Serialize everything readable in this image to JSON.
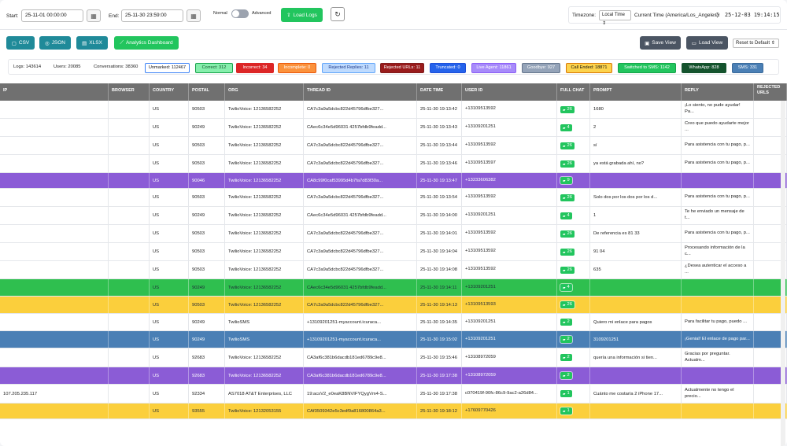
{
  "toolbar": {
    "start_label": "Start:",
    "start_value": "25-11-01 00:00:00",
    "end_label": "End:",
    "end_value": "25-11-30 23:59:00",
    "mode_normal": "Normal",
    "mode_advanced": "Advanced",
    "load_logs": "Load Logs",
    "timezone_label": "Timezone:",
    "timezone_value": "Local Time",
    "current_time_label": "Current Time (America/Los_Angeles):",
    "current_time_value": "25-12-03 19:14:15"
  },
  "actions": {
    "csv": "CSV",
    "json": "JSON",
    "xlsx": "XLSX",
    "analytics": "Analytics Dashboard",
    "save_view": "Save View",
    "load_view": "Load View",
    "reset_view": "Reset to Default"
  },
  "stats": {
    "logs": "Logs: 143614",
    "users": "Users: 20085",
    "conversations": "Conversations: 38360"
  },
  "chips": [
    {
      "label": "Unmarked: 112467",
      "bg": "#ffffff",
      "border": "#3b82f6",
      "color": "#111111"
    },
    {
      "label": "Correct: 312",
      "bg": "#86efac",
      "border": "#16a34a",
      "color": "#14532d"
    },
    {
      "label": "Incorrect: 34",
      "bg": "#dc2626",
      "border": "#dc2626",
      "color": "#ffffff"
    },
    {
      "label": "Incomplete: 0",
      "bg": "#fb923c",
      "border": "#ea580c",
      "color": "#ffffff"
    },
    {
      "label": "Rejected Replies: 11",
      "bg": "#bfdbfe",
      "border": "#60a5fa",
      "color": "#1e3a8a"
    },
    {
      "label": "Rejected URLs: 11",
      "bg": "#991b1b",
      "border": "#7f1d1d",
      "color": "#ffffff"
    },
    {
      "label": "Truncated: 0",
      "bg": "#2563eb",
      "border": "#1d4ed8",
      "color": "#ffffff"
    },
    {
      "label": "Live Agent: 11861",
      "bg": "#a78bfa",
      "border": "#8b5cf6",
      "color": "#ffffff"
    },
    {
      "label": "Goodbye: 927",
      "bg": "#94a3b8",
      "border": "#64748b",
      "color": "#ffffff"
    },
    {
      "label": "Call Ended: 18871",
      "bg": "#fcd34d",
      "border": "#d97706",
      "color": "#111111"
    },
    {
      "label": "Switched to SMS: 1142",
      "bg": "#22c55e",
      "border": "#16a34a",
      "color": "#ffffff"
    },
    {
      "label": "WhatsApp: 828",
      "bg": "#14532d",
      "border": "#14532d",
      "color": "#ffffff"
    },
    {
      "label": "SMS: 331",
      "bg": "#4a7fb5",
      "border": "#3b6a9a",
      "color": "#ffffff"
    }
  ],
  "columns": [
    "IP",
    "BROWSER",
    "COUNTRY",
    "POSTAL",
    "ORG",
    "THREAD ID",
    "DATE TIME",
    "USER ID",
    "FULL CHAT",
    "PROMPT",
    "REPLY",
    "REJECTED URLS"
  ],
  "row_colors": {
    "white": "#ffffff",
    "purple": "#8b5cd6",
    "green": "#2fbf4f",
    "yellow": "#fbcf3c",
    "blue": "#4a7fb5"
  },
  "rows": [
    {
      "style": "white",
      "ip": "",
      "country": "US",
      "postal": "90503",
      "org": "TwilioVoice: 12136582252",
      "thread": "CA7c3a9a5dcbc822d45796dfbe327...",
      "datetime": "25-11-30 19:13:42",
      "user": "+13109513592",
      "chat": "26",
      "prompt": "1680",
      "reply": "¡Lo siento, no pude ayudar! Pa..."
    },
    {
      "style": "white",
      "ip": "",
      "country": "US",
      "postal": "90249",
      "org": "TwilioVoice: 12136582252",
      "thread": "CAec6c34e5d96031 4257bfdb9feadd...",
      "datetime": "25-11-30 19:13:43",
      "user": "+13109201251",
      "chat": "4",
      "prompt": "2",
      "reply": "Creo que puedo ayudarte mejor ..."
    },
    {
      "style": "white",
      "ip": "",
      "country": "US",
      "postal": "90503",
      "org": "TwilioVoice: 12136582252",
      "thread": "CA7c3a9a5dcbc822d45796dfbe327...",
      "datetime": "25-11-30 19:13:44",
      "user": "+13109513592",
      "chat": "26",
      "prompt": "sí",
      "reply": "Para asistencia con tu pago, p..."
    },
    {
      "style": "white",
      "ip": "",
      "country": "US",
      "postal": "90503",
      "org": "TwilioVoice: 12136582252",
      "thread": "CA7c3a9a5dcbc822d45796dfbe327...",
      "datetime": "25-11-30 19:13:46",
      "user": "+13109513597",
      "chat": "26",
      "prompt": "ya está grabada ahí, no?",
      "reply": "Para asistencia con tu pago, p..."
    },
    {
      "style": "purple",
      "ip": "",
      "country": "US",
      "postal": "90046",
      "org": "TwilioVoice: 12136582252",
      "thread": "CA8c99f0caf53995d4b7fa7d83f30a...",
      "datetime": "25-11-30 19:13:47",
      "user": "+13233606382",
      "chat": "9",
      "prompt": "",
      "reply": ""
    },
    {
      "style": "white",
      "ip": "",
      "country": "US",
      "postal": "90503",
      "org": "TwilioVoice: 12136582252",
      "thread": "CA7c3a9a5dcbc822d45796dfbe327...",
      "datetime": "25-11-30 19:13:54",
      "user": "+13109513592",
      "chat": "26",
      "prompt": "Solo dos por los dos por los d...",
      "reply": "Para asistencia con tu pago, p..."
    },
    {
      "style": "white",
      "ip": "",
      "country": "US",
      "postal": "90249",
      "org": "TwilioVoice: 12136582252",
      "thread": "CAec6c34e5d96031 4257bfdb9feadd...",
      "datetime": "25-11-30 19:14:00",
      "user": "+13109201251",
      "chat": "4",
      "prompt": "1",
      "reply": "Te he enviado un mensaje de t..."
    },
    {
      "style": "white",
      "ip": "",
      "country": "US",
      "postal": "90503",
      "org": "TwilioVoice: 12136582252",
      "thread": "CA7c3a9a5dcbc822d45796dfbe327...",
      "datetime": "25-11-30 19:14:01",
      "user": "+13109513592",
      "chat": "26",
      "prompt": "De referencia es 81 33",
      "reply": "Para asistencia con tu pago, p..."
    },
    {
      "style": "white",
      "ip": "",
      "country": "US",
      "postal": "90503",
      "org": "TwilioVoice: 12136582252",
      "thread": "CA7c3a9a5dcbc822d45796dfbe327...",
      "datetime": "25-11-30 19:14:04",
      "user": "+13109513592",
      "chat": "26",
      "prompt": "91 04",
      "reply": "Procesando información de la c..."
    },
    {
      "style": "white",
      "ip": "",
      "country": "US",
      "postal": "90503",
      "org": "TwilioVoice: 12136582252",
      "thread": "CA7c3a9a5dcbc822d45796dfbe327...",
      "datetime": "25-11-30 19:14:08",
      "user": "+13109513592",
      "chat": "26",
      "prompt": "635",
      "reply": "¿Desea autenticar el acceso a ..."
    },
    {
      "style": "green",
      "ip": "",
      "country": "US",
      "postal": "90249",
      "org": "TwilioVoice: 12136582252",
      "thread": "CAec6c34e5d96031 4257bfdb9feadd...",
      "datetime": "25-11-30 19:14:11",
      "user": "+13109201251",
      "chat": "4",
      "prompt": "",
      "reply": ""
    },
    {
      "style": "yellow",
      "ip": "",
      "country": "US",
      "postal": "90503",
      "org": "TwilioVoice: 12136582252",
      "thread": "CA7c3a9a5dcbc822d45796dfbe327...",
      "datetime": "25-11-30 19:14:13",
      "user": "+13109513593",
      "chat": "26",
      "prompt": "",
      "reply": ""
    },
    {
      "style": "white",
      "ip": "",
      "country": "US",
      "postal": "90249",
      "org": "TwilioSMS",
      "thread": "+13109201251-myaccount.icuraca...",
      "datetime": "25-11-30 19:14:35",
      "user": "+13109201251",
      "chat": "2",
      "prompt": "Quiero mi enlace para pagos",
      "reply": "Para facilitar tu pago, puedo ..."
    },
    {
      "style": "blue",
      "ip": "",
      "country": "US",
      "postal": "90249",
      "org": "TwilioSMS",
      "thread": "+13109201251-myaccount.icuraca...",
      "datetime": "25-11-30 19:15:02",
      "user": "+13109201251",
      "chat": "2",
      "prompt": "3109201251",
      "reply": "¡Genial! El enlace de pago par..."
    },
    {
      "style": "white",
      "ip": "",
      "country": "US",
      "postal": "92683",
      "org": "TwilioVoice: 12136582252",
      "thread": "CA3af6c381b6dacdb181ed6789c9e8...",
      "datetime": "25-11-30 19:15:46",
      "user": "+13108972059",
      "chat": "2",
      "prompt": "quería una información si tien...",
      "reply": "Gracias por preguntar. Actualm..."
    },
    {
      "style": "purple",
      "ip": "",
      "country": "US",
      "postal": "92683",
      "org": "TwilioVoice: 12136582252",
      "thread": "CA3af6c381b6dacdb181ed6789c9e8...",
      "datetime": "25-11-30 19:17:38",
      "user": "+13108972059",
      "chat": "2",
      "prompt": "",
      "reply": ""
    },
    {
      "style": "white",
      "ip": "107.205.235.117",
      "country": "US",
      "postal": "92334",
      "org": "AS7018 AT&T Enterprises, LLC",
      "thread": "19:acsV2_e0eaK8BNVIFYQygVm4-S...",
      "datetime": "25-11-30 19:17:38",
      "user": "c070419f-90fc-86c9-9ac2-a26d84...",
      "chat": "1",
      "prompt": "Cuánto me costaría 2 iPhone 17...",
      "reply": "Actualmente no tengo el precio..."
    },
    {
      "style": "yellow",
      "ip": "",
      "country": "US",
      "postal": "93555",
      "org": "TwilioVoice: 12132053155",
      "thread": "CAf3509342e5c3edf9a816800864a3...",
      "datetime": "25-11-30 19:18:12",
      "user": "+17609770426",
      "chat": "1",
      "prompt": "",
      "reply": ""
    }
  ]
}
